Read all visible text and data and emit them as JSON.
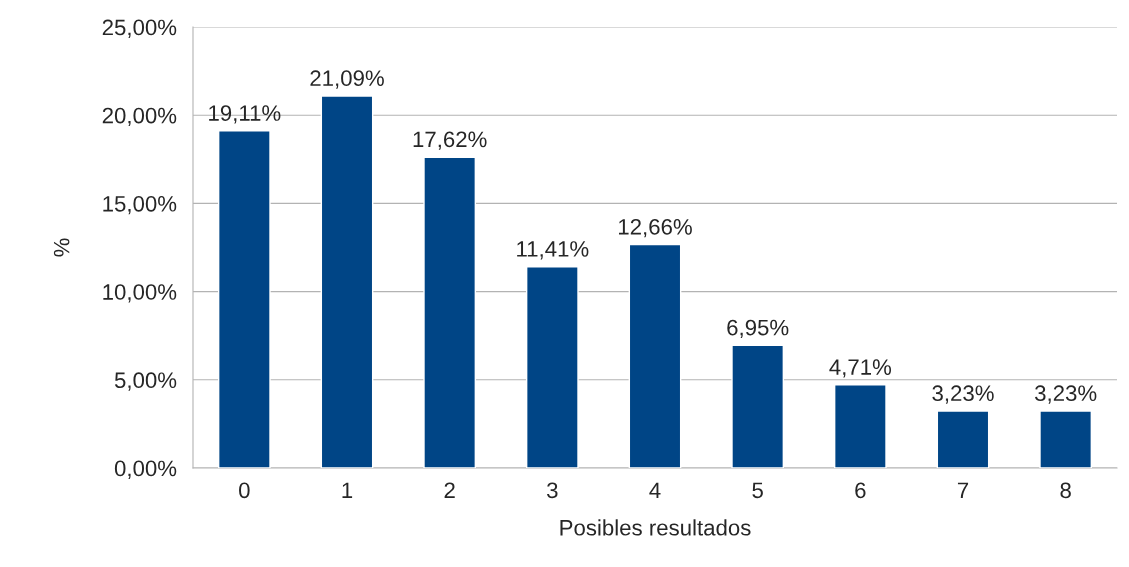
{
  "chart_data": {
    "type": "bar",
    "xlabel": "Posibles resultados",
    "ylabel": "%",
    "categories": [
      "0",
      "1",
      "2",
      "3",
      "4",
      "5",
      "6",
      "7",
      "8"
    ],
    "values": [
      19.11,
      21.09,
      17.62,
      11.41,
      12.66,
      6.95,
      4.71,
      3.23,
      3.23
    ],
    "value_labels": [
      "19,11%",
      "21,09%",
      "17,62%",
      "11,41%",
      "12,66%",
      "6,95%",
      "4,71%",
      "3,23%",
      "3,23%"
    ],
    "color": "#004586",
    "ylim": [
      0,
      25
    ],
    "yticks": [
      {
        "value": 0,
        "label": "0,00%"
      },
      {
        "value": 5,
        "label": "5,00%"
      },
      {
        "value": 10,
        "label": "10,00%"
      },
      {
        "value": 15,
        "label": "15,00%"
      },
      {
        "value": 20,
        "label": "20,00%"
      },
      {
        "value": 25,
        "label": "25,00%"
      }
    ],
    "grid": "y",
    "legend": false
  }
}
